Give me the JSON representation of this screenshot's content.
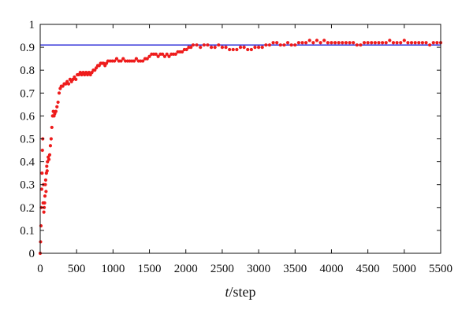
{
  "chart_data": {
    "type": "scatter",
    "title": "",
    "xlabel_italic": "t",
    "xlabel_rest": "/step",
    "ylabel": "",
    "xlim": [
      0,
      5500
    ],
    "ylim": [
      0,
      1
    ],
    "x_ticks": [
      0,
      500,
      1000,
      1500,
      2000,
      2500,
      3000,
      3500,
      4000,
      4500,
      5000,
      5500
    ],
    "y_ticks": [
      0,
      0.1,
      0.2,
      0.3,
      0.4,
      0.5,
      0.6,
      0.7,
      0.8,
      0.9,
      1
    ],
    "y_tick_labels": [
      "0",
      "0.1",
      "0.2",
      "0.3",
      "0.4",
      "0.5",
      "0.6",
      "0.7",
      "0.8",
      "0.9",
      "1"
    ],
    "grid": false,
    "legend": "none",
    "reference_line": {
      "y": 0.91,
      "color": "#1f1fd6"
    },
    "series": [
      {
        "color": "#ee1c1c",
        "points": [
          [
            0,
            0.0
          ],
          [
            5,
            0.05
          ],
          [
            10,
            0.12
          ],
          [
            15,
            0.2
          ],
          [
            20,
            0.28
          ],
          [
            25,
            0.35
          ],
          [
            30,
            0.45
          ],
          [
            35,
            0.5
          ],
          [
            40,
            0.22
          ],
          [
            45,
            0.3
          ],
          [
            50,
            0.18
          ],
          [
            55,
            0.2
          ],
          [
            60,
            0.22
          ],
          [
            65,
            0.25
          ],
          [
            70,
            0.3
          ],
          [
            75,
            0.32
          ],
          [
            80,
            0.27
          ],
          [
            85,
            0.35
          ],
          [
            90,
            0.38
          ],
          [
            95,
            0.36
          ],
          [
            100,
            0.4
          ],
          [
            110,
            0.42
          ],
          [
            120,
            0.41
          ],
          [
            130,
            0.43
          ],
          [
            140,
            0.47
          ],
          [
            150,
            0.5
          ],
          [
            160,
            0.55
          ],
          [
            170,
            0.6
          ],
          [
            180,
            0.62
          ],
          [
            190,
            0.6
          ],
          [
            200,
            0.61
          ],
          [
            215,
            0.62
          ],
          [
            230,
            0.64
          ],
          [
            245,
            0.66
          ],
          [
            260,
            0.7
          ],
          [
            275,
            0.72
          ],
          [
            290,
            0.73
          ],
          [
            310,
            0.73
          ],
          [
            330,
            0.74
          ],
          [
            350,
            0.74
          ],
          [
            370,
            0.75
          ],
          [
            390,
            0.74
          ],
          [
            410,
            0.76
          ],
          [
            430,
            0.75
          ],
          [
            450,
            0.76
          ],
          [
            470,
            0.77
          ],
          [
            490,
            0.76
          ],
          [
            510,
            0.78
          ],
          [
            530,
            0.78
          ],
          [
            550,
            0.79
          ],
          [
            570,
            0.78
          ],
          [
            590,
            0.79
          ],
          [
            610,
            0.78
          ],
          [
            630,
            0.79
          ],
          [
            650,
            0.78
          ],
          [
            670,
            0.79
          ],
          [
            690,
            0.78
          ],
          [
            710,
            0.79
          ],
          [
            730,
            0.8
          ],
          [
            750,
            0.8
          ],
          [
            770,
            0.81
          ],
          [
            790,
            0.82
          ],
          [
            810,
            0.82
          ],
          [
            830,
            0.83
          ],
          [
            850,
            0.83
          ],
          [
            870,
            0.83
          ],
          [
            890,
            0.82
          ],
          [
            910,
            0.83
          ],
          [
            930,
            0.84
          ],
          [
            960,
            0.84
          ],
          [
            990,
            0.84
          ],
          [
            1020,
            0.84
          ],
          [
            1050,
            0.85
          ],
          [
            1080,
            0.84
          ],
          [
            1110,
            0.84
          ],
          [
            1140,
            0.85
          ],
          [
            1170,
            0.84
          ],
          [
            1200,
            0.84
          ],
          [
            1230,
            0.84
          ],
          [
            1260,
            0.84
          ],
          [
            1290,
            0.84
          ],
          [
            1320,
            0.85
          ],
          [
            1350,
            0.84
          ],
          [
            1380,
            0.84
          ],
          [
            1410,
            0.84
          ],
          [
            1440,
            0.85
          ],
          [
            1470,
            0.85
          ],
          [
            1500,
            0.86
          ],
          [
            1530,
            0.87
          ],
          [
            1560,
            0.87
          ],
          [
            1590,
            0.87
          ],
          [
            1620,
            0.86
          ],
          [
            1650,
            0.87
          ],
          [
            1680,
            0.87
          ],
          [
            1710,
            0.86
          ],
          [
            1740,
            0.87
          ],
          [
            1770,
            0.86
          ],
          [
            1800,
            0.87
          ],
          [
            1830,
            0.87
          ],
          [
            1860,
            0.87
          ],
          [
            1890,
            0.88
          ],
          [
            1920,
            0.88
          ],
          [
            1950,
            0.88
          ],
          [
            1980,
            0.89
          ],
          [
            2010,
            0.89
          ],
          [
            2040,
            0.9
          ],
          [
            2070,
            0.9
          ],
          [
            2100,
            0.91
          ],
          [
            2150,
            0.91
          ],
          [
            2200,
            0.9
          ],
          [
            2250,
            0.91
          ],
          [
            2300,
            0.91
          ],
          [
            2350,
            0.9
          ],
          [
            2400,
            0.9
          ],
          [
            2450,
            0.91
          ],
          [
            2500,
            0.9
          ],
          [
            2550,
            0.9
          ],
          [
            2600,
            0.89
          ],
          [
            2650,
            0.89
          ],
          [
            2700,
            0.89
          ],
          [
            2750,
            0.9
          ],
          [
            2800,
            0.9
          ],
          [
            2850,
            0.89
          ],
          [
            2900,
            0.89
          ],
          [
            2950,
            0.9
          ],
          [
            3000,
            0.9
          ],
          [
            3050,
            0.9
          ],
          [
            3100,
            0.91
          ],
          [
            3150,
            0.91
          ],
          [
            3200,
            0.92
          ],
          [
            3250,
            0.92
          ],
          [
            3300,
            0.91
          ],
          [
            3350,
            0.91
          ],
          [
            3400,
            0.92
          ],
          [
            3450,
            0.91
          ],
          [
            3500,
            0.91
          ],
          [
            3550,
            0.92
          ],
          [
            3600,
            0.92
          ],
          [
            3650,
            0.92
          ],
          [
            3700,
            0.93
          ],
          [
            3750,
            0.92
          ],
          [
            3800,
            0.93
          ],
          [
            3850,
            0.92
          ],
          [
            3900,
            0.93
          ],
          [
            3950,
            0.92
          ],
          [
            4000,
            0.92
          ],
          [
            4050,
            0.92
          ],
          [
            4100,
            0.92
          ],
          [
            4150,
            0.92
          ],
          [
            4200,
            0.92
          ],
          [
            4250,
            0.92
          ],
          [
            4300,
            0.92
          ],
          [
            4350,
            0.91
          ],
          [
            4400,
            0.91
          ],
          [
            4450,
            0.92
          ],
          [
            4500,
            0.92
          ],
          [
            4550,
            0.92
          ],
          [
            4600,
            0.92
          ],
          [
            4650,
            0.92
          ],
          [
            4700,
            0.92
          ],
          [
            4750,
            0.92
          ],
          [
            4800,
            0.93
          ],
          [
            4850,
            0.92
          ],
          [
            4900,
            0.92
          ],
          [
            4950,
            0.92
          ],
          [
            5000,
            0.93
          ],
          [
            5050,
            0.92
          ],
          [
            5100,
            0.92
          ],
          [
            5150,
            0.92
          ],
          [
            5200,
            0.92
          ],
          [
            5250,
            0.92
          ],
          [
            5300,
            0.92
          ],
          [
            5350,
            0.91
          ],
          [
            5400,
            0.92
          ],
          [
            5450,
            0.92
          ],
          [
            5500,
            0.92
          ]
        ]
      }
    ]
  }
}
